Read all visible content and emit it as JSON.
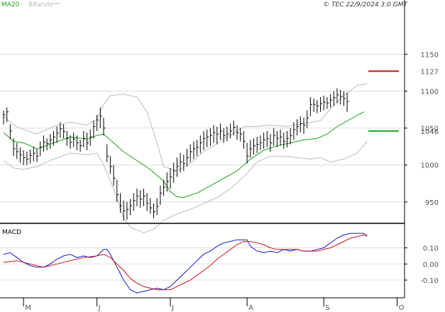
{
  "header": {
    "ma_label": "MA20",
    "bb_label": "BBands",
    "copyright": "© TEC 22/9/2024 3:0 GMT"
  },
  "macd_label": "MACD",
  "colors": {
    "ma": "#1aa31a",
    "bands": "#bbbbbb",
    "macd": "#1515cc",
    "signal": "#cc1111",
    "resistance": "#cc1111",
    "support": "#1aa31a",
    "bars": "#000000",
    "grid": "#dddddd"
  },
  "chart_data": {
    "type": "line",
    "title": "",
    "price_axis": {
      "ticks": [
        950,
        1000,
        1050,
        1100,
        1150
      ],
      "ylim": [
        921,
        1209
      ]
    },
    "macd_axis": {
      "ticks": [
        0.1,
        0.0,
        -0.1
      ],
      "tick_labels": [
        "0.10",
        "0.00",
        "-0.10"
      ],
      "ylim": [
        -0.21,
        0.23
      ]
    },
    "x_ticks": [
      {
        "label": "M",
        "index": 6
      },
      {
        "label": "J",
        "index": 28
      },
      {
        "label": "J",
        "index": 50
      },
      {
        "label": "A",
        "index": 73
      },
      {
        "label": "S",
        "index": 96
      },
      {
        "label": "O",
        "index": 118
      }
    ],
    "levels": [
      {
        "label": "1127",
        "value": 1127,
        "kind": "resistance"
      },
      {
        "label": "1046",
        "value": 1046,
        "kind": "support"
      }
    ],
    "price_bars": [
      {
        "h": 1074,
        "l": 1055,
        "c": 1068
      },
      {
        "h": 1078,
        "l": 1058,
        "c": 1072
      },
      {
        "h": 1055,
        "l": 1035,
        "c": 1046
      },
      {
        "h": 1036,
        "l": 1012,
        "c": 1022
      },
      {
        "h": 1030,
        "l": 1008,
        "c": 1018
      },
      {
        "h": 1024,
        "l": 1003,
        "c": 1014
      },
      {
        "h": 1020,
        "l": 1000,
        "c": 1010
      },
      {
        "h": 1018,
        "l": 1000,
        "c": 1008
      },
      {
        "h": 1021,
        "l": 1002,
        "c": 1013
      },
      {
        "h": 1025,
        "l": 1005,
        "c": 1016
      },
      {
        "h": 1022,
        "l": 1004,
        "c": 1012
      },
      {
        "h": 1032,
        "l": 1012,
        "c": 1024
      },
      {
        "h": 1040,
        "l": 1018,
        "c": 1031
      },
      {
        "h": 1036,
        "l": 1020,
        "c": 1029
      },
      {
        "h": 1042,
        "l": 1022,
        "c": 1034
      },
      {
        "h": 1046,
        "l": 1026,
        "c": 1038
      },
      {
        "h": 1052,
        "l": 1030,
        "c": 1043
      },
      {
        "h": 1058,
        "l": 1037,
        "c": 1049
      },
      {
        "h": 1055,
        "l": 1036,
        "c": 1045
      },
      {
        "h": 1046,
        "l": 1026,
        "c": 1036
      },
      {
        "h": 1040,
        "l": 1022,
        "c": 1031
      },
      {
        "h": 1044,
        "l": 1024,
        "c": 1035
      },
      {
        "h": 1040,
        "l": 1020,
        "c": 1030
      },
      {
        "h": 1034,
        "l": 1018,
        "c": 1026
      },
      {
        "h": 1046,
        "l": 1024,
        "c": 1036
      },
      {
        "h": 1044,
        "l": 1020,
        "c": 1030
      },
      {
        "h": 1048,
        "l": 1026,
        "c": 1038
      },
      {
        "h": 1060,
        "l": 1036,
        "c": 1052
      },
      {
        "h": 1068,
        "l": 1046,
        "c": 1061
      },
      {
        "h": 1078,
        "l": 1050,
        "c": 1066
      },
      {
        "h": 1064,
        "l": 1040,
        "c": 1050
      },
      {
        "h": 1028,
        "l": 1004,
        "c": 1012
      },
      {
        "h": 1012,
        "l": 988,
        "c": 998
      },
      {
        "h": 1000,
        "l": 972,
        "c": 982
      },
      {
        "h": 980,
        "l": 950,
        "c": 960
      },
      {
        "h": 962,
        "l": 935,
        "c": 945
      },
      {
        "h": 952,
        "l": 925,
        "c": 938
      },
      {
        "h": 950,
        "l": 926,
        "c": 940
      },
      {
        "h": 954,
        "l": 932,
        "c": 945
      },
      {
        "h": 962,
        "l": 938,
        "c": 952
      },
      {
        "h": 968,
        "l": 944,
        "c": 958
      },
      {
        "h": 966,
        "l": 942,
        "c": 954
      },
      {
        "h": 968,
        "l": 944,
        "c": 958
      },
      {
        "h": 962,
        "l": 938,
        "c": 948
      },
      {
        "h": 955,
        "l": 934,
        "c": 942
      },
      {
        "h": 948,
        "l": 928,
        "c": 937
      },
      {
        "h": 955,
        "l": 932,
        "c": 944
      },
      {
        "h": 972,
        "l": 946,
        "c": 962
      },
      {
        "h": 980,
        "l": 958,
        "c": 970
      },
      {
        "h": 990,
        "l": 964,
        "c": 978
      },
      {
        "h": 996,
        "l": 968,
        "c": 984
      },
      {
        "h": 1003,
        "l": 976,
        "c": 992
      },
      {
        "h": 1010,
        "l": 984,
        "c": 998
      },
      {
        "h": 1016,
        "l": 990,
        "c": 1004
      },
      {
        "h": 1014,
        "l": 992,
        "c": 1002
      },
      {
        "h": 1022,
        "l": 998,
        "c": 1010
      },
      {
        "h": 1028,
        "l": 1004,
        "c": 1018
      },
      {
        "h": 1032,
        "l": 1008,
        "c": 1022
      },
      {
        "h": 1034,
        "l": 1012,
        "c": 1024
      },
      {
        "h": 1040,
        "l": 1016,
        "c": 1030
      },
      {
        "h": 1046,
        "l": 1020,
        "c": 1036
      },
      {
        "h": 1048,
        "l": 1024,
        "c": 1038
      },
      {
        "h": 1050,
        "l": 1026,
        "c": 1040
      },
      {
        "h": 1054,
        "l": 1030,
        "c": 1044
      },
      {
        "h": 1052,
        "l": 1028,
        "c": 1042
      },
      {
        "h": 1056,
        "l": 1034,
        "c": 1046
      },
      {
        "h": 1050,
        "l": 1030,
        "c": 1040
      },
      {
        "h": 1052,
        "l": 1032,
        "c": 1042
      },
      {
        "h": 1056,
        "l": 1036,
        "c": 1046
      },
      {
        "h": 1060,
        "l": 1040,
        "c": 1051
      },
      {
        "h": 1054,
        "l": 1034,
        "c": 1044
      },
      {
        "h": 1050,
        "l": 1032,
        "c": 1042
      },
      {
        "h": 1046,
        "l": 1022,
        "c": 1032
      },
      {
        "h": 1030,
        "l": 1002,
        "c": 1012
      },
      {
        "h": 1034,
        "l": 1010,
        "c": 1022
      },
      {
        "h": 1036,
        "l": 1014,
        "c": 1026
      },
      {
        "h": 1038,
        "l": 1016,
        "c": 1028
      },
      {
        "h": 1040,
        "l": 1020,
        "c": 1030
      },
      {
        "h": 1044,
        "l": 1022,
        "c": 1034
      },
      {
        "h": 1046,
        "l": 1024,
        "c": 1036
      },
      {
        "h": 1042,
        "l": 1018,
        "c": 1030
      },
      {
        "h": 1050,
        "l": 1026,
        "c": 1040
      },
      {
        "h": 1046,
        "l": 1024,
        "c": 1036
      },
      {
        "h": 1048,
        "l": 1026,
        "c": 1038
      },
      {
        "h": 1044,
        "l": 1022,
        "c": 1032
      },
      {
        "h": 1046,
        "l": 1024,
        "c": 1036
      },
      {
        "h": 1050,
        "l": 1028,
        "c": 1040
      },
      {
        "h": 1058,
        "l": 1034,
        "c": 1048
      },
      {
        "h": 1062,
        "l": 1040,
        "c": 1052
      },
      {
        "h": 1066,
        "l": 1044,
        "c": 1056
      },
      {
        "h": 1064,
        "l": 1042,
        "c": 1054
      },
      {
        "h": 1074,
        "l": 1050,
        "c": 1064
      },
      {
        "h": 1092,
        "l": 1066,
        "c": 1082
      },
      {
        "h": 1090,
        "l": 1072,
        "c": 1082
      },
      {
        "h": 1088,
        "l": 1070,
        "c": 1080
      },
      {
        "h": 1092,
        "l": 1072,
        "c": 1083
      },
      {
        "h": 1094,
        "l": 1074,
        "c": 1085
      },
      {
        "h": 1092,
        "l": 1076,
        "c": 1084
      },
      {
        "h": 1096,
        "l": 1078,
        "c": 1088
      },
      {
        "h": 1100,
        "l": 1080,
        "c": 1091
      },
      {
        "h": 1104,
        "l": 1084,
        "c": 1095
      },
      {
        "h": 1102,
        "l": 1082,
        "c": 1093
      },
      {
        "h": 1100,
        "l": 1080,
        "c": 1090
      },
      {
        "h": 1098,
        "l": 1072,
        "c": 1086
      }
    ],
    "ma20": [
      [
        0,
        1044
      ],
      [
        3,
        1032
      ],
      [
        6,
        1030
      ],
      [
        10,
        1022
      ],
      [
        15,
        1030
      ],
      [
        20,
        1038
      ],
      [
        25,
        1035
      ],
      [
        28,
        1040
      ],
      [
        30,
        1042
      ],
      [
        33,
        1030
      ],
      [
        36,
        1018
      ],
      [
        40,
        1006
      ],
      [
        44,
        994
      ],
      [
        48,
        978
      ],
      [
        50,
        964
      ],
      [
        52,
        957
      ],
      [
        54,
        956
      ],
      [
        58,
        962
      ],
      [
        62,
        972
      ],
      [
        66,
        982
      ],
      [
        70,
        992
      ],
      [
        74,
        1008
      ],
      [
        78,
        1020
      ],
      [
        82,
        1026
      ],
      [
        86,
        1030
      ],
      [
        90,
        1034
      ],
      [
        94,
        1036
      ],
      [
        97,
        1042
      ],
      [
        100,
        1052
      ],
      [
        104,
        1062
      ],
      [
        108,
        1072
      ]
    ],
    "bb_upper": [
      [
        0,
        1066
      ],
      [
        3,
        1054
      ],
      [
        6,
        1048
      ],
      [
        10,
        1042
      ],
      [
        15,
        1052
      ],
      [
        20,
        1058
      ],
      [
        25,
        1054
      ],
      [
        28,
        1062
      ],
      [
        30,
        1082
      ],
      [
        32,
        1094
      ],
      [
        36,
        1096
      ],
      [
        40,
        1092
      ],
      [
        43,
        1072
      ],
      [
        46,
        1030
      ],
      [
        48,
        998
      ],
      [
        52,
        992
      ],
      [
        56,
        1002
      ],
      [
        60,
        1018
      ],
      [
        63,
        1026
      ],
      [
        67,
        1038
      ],
      [
        70,
        1046
      ],
      [
        72,
        1052
      ],
      [
        75,
        1052
      ],
      [
        80,
        1054
      ],
      [
        85,
        1052
      ],
      [
        90,
        1056
      ],
      [
        95,
        1060
      ],
      [
        98,
        1076
      ],
      [
        102,
        1094
      ],
      [
        106,
        1108
      ],
      [
        109,
        1110
      ]
    ],
    "bb_lower": [
      [
        0,
        1006
      ],
      [
        3,
        996
      ],
      [
        6,
        994
      ],
      [
        10,
        998
      ],
      [
        15,
        1008
      ],
      [
        20,
        1016
      ],
      [
        25,
        1014
      ],
      [
        28,
        1016
      ],
      [
        30,
        1000
      ],
      [
        33,
        968
      ],
      [
        36,
        928
      ],
      [
        38,
        916
      ],
      [
        42,
        908
      ],
      [
        45,
        913
      ],
      [
        48,
        925
      ],
      [
        52,
        934
      ],
      [
        56,
        940
      ],
      [
        60,
        948
      ],
      [
        64,
        956
      ],
      [
        68,
        968
      ],
      [
        72,
        984
      ],
      [
        76,
        1004
      ],
      [
        80,
        1012
      ],
      [
        84,
        1012
      ],
      [
        88,
        1010
      ],
      [
        92,
        1008
      ],
      [
        95,
        1010
      ],
      [
        98,
        1004
      ],
      [
        102,
        1008
      ],
      [
        106,
        1016
      ],
      [
        109,
        1032
      ]
    ],
    "macd": [
      [
        0,
        0.06
      ],
      [
        2,
        0.07
      ],
      [
        4,
        0.04
      ],
      [
        6,
        0.01
      ],
      [
        8,
        -0.01
      ],
      [
        10,
        -0.02
      ],
      [
        12,
        -0.02
      ],
      [
        14,
        0.0
      ],
      [
        16,
        0.03
      ],
      [
        18,
        0.05
      ],
      [
        20,
        0.06
      ],
      [
        22,
        0.04
      ],
      [
        24,
        0.05
      ],
      [
        26,
        0.04
      ],
      [
        28,
        0.05
      ],
      [
        30,
        0.09
      ],
      [
        31,
        0.09
      ],
      [
        32,
        0.06
      ],
      [
        34,
        -0.02
      ],
      [
        36,
        -0.1
      ],
      [
        38,
        -0.16
      ],
      [
        40,
        -0.18
      ],
      [
        42,
        -0.17
      ],
      [
        44,
        -0.16
      ],
      [
        46,
        -0.15
      ],
      [
        48,
        -0.16
      ],
      [
        50,
        -0.14
      ],
      [
        52,
        -0.1
      ],
      [
        54,
        -0.06
      ],
      [
        56,
        -0.02
      ],
      [
        58,
        0.02
      ],
      [
        60,
        0.06
      ],
      [
        62,
        0.08
      ],
      [
        64,
        0.11
      ],
      [
        66,
        0.13
      ],
      [
        68,
        0.14
      ],
      [
        70,
        0.15
      ],
      [
        72,
        0.15
      ],
      [
        73,
        0.15
      ],
      [
        74,
        0.11
      ],
      [
        76,
        0.08
      ],
      [
        78,
        0.07
      ],
      [
        80,
        0.08
      ],
      [
        82,
        0.07
      ],
      [
        84,
        0.09
      ],
      [
        86,
        0.08
      ],
      [
        88,
        0.09
      ],
      [
        90,
        0.08
      ],
      [
        92,
        0.08
      ],
      [
        94,
        0.09
      ],
      [
        96,
        0.1
      ],
      [
        98,
        0.13
      ],
      [
        100,
        0.16
      ],
      [
        102,
        0.18
      ],
      [
        104,
        0.19
      ],
      [
        106,
        0.19
      ],
      [
        108,
        0.19
      ],
      [
        109,
        0.17
      ]
    ],
    "signal": [
      [
        0,
        0.01
      ],
      [
        4,
        0.02
      ],
      [
        8,
        0.0
      ],
      [
        12,
        -0.02
      ],
      [
        16,
        0.0
      ],
      [
        20,
        0.02
      ],
      [
        24,
        0.04
      ],
      [
        28,
        0.05
      ],
      [
        30,
        0.06
      ],
      [
        32,
        0.04
      ],
      [
        34,
        0.0
      ],
      [
        36,
        -0.04
      ],
      [
        38,
        -0.09
      ],
      [
        40,
        -0.12
      ],
      [
        42,
        -0.14
      ],
      [
        44,
        -0.15
      ],
      [
        46,
        -0.16
      ],
      [
        48,
        -0.16
      ],
      [
        50,
        -0.16
      ],
      [
        52,
        -0.14
      ],
      [
        54,
        -0.12
      ],
      [
        56,
        -0.1
      ],
      [
        58,
        -0.07
      ],
      [
        60,
        -0.04
      ],
      [
        62,
        -0.01
      ],
      [
        64,
        0.03
      ],
      [
        66,
        0.06
      ],
      [
        68,
        0.09
      ],
      [
        70,
        0.12
      ],
      [
        72,
        0.14
      ],
      [
        74,
        0.14
      ],
      [
        76,
        0.13
      ],
      [
        78,
        0.12
      ],
      [
        80,
        0.1
      ],
      [
        82,
        0.09
      ],
      [
        84,
        0.09
      ],
      [
        86,
        0.09
      ],
      [
        88,
        0.09
      ],
      [
        90,
        0.08
      ],
      [
        92,
        0.08
      ],
      [
        94,
        0.08
      ],
      [
        96,
        0.09
      ],
      [
        98,
        0.1
      ],
      [
        100,
        0.12
      ],
      [
        102,
        0.14
      ],
      [
        104,
        0.16
      ],
      [
        106,
        0.17
      ],
      [
        108,
        0.18
      ],
      [
        109,
        0.18
      ]
    ]
  }
}
